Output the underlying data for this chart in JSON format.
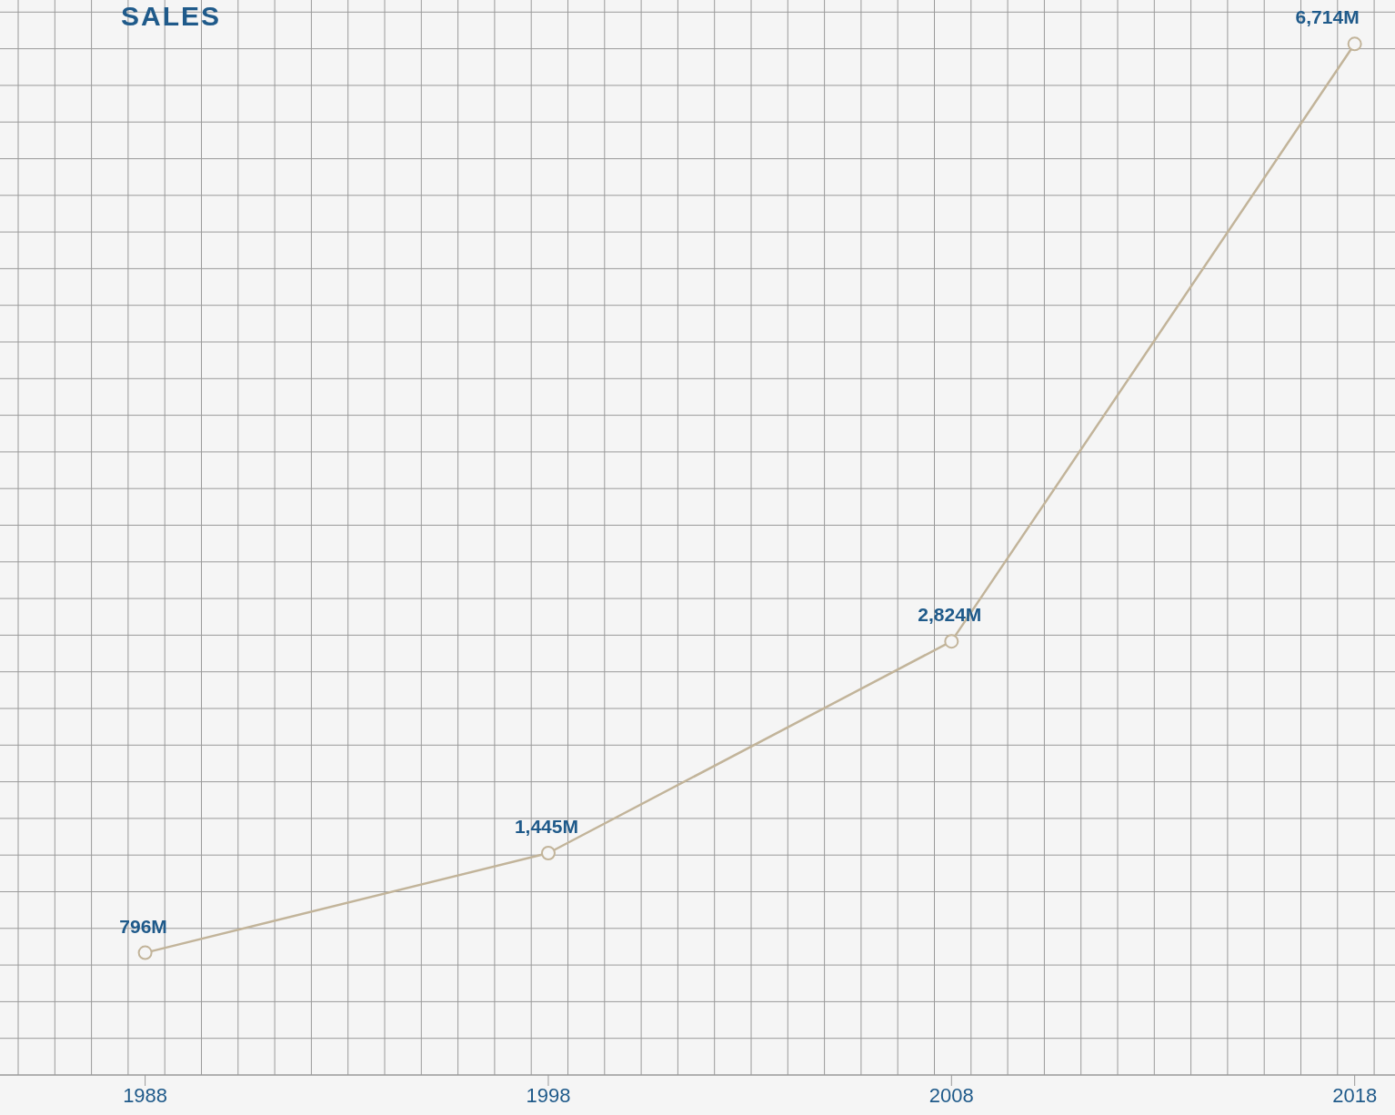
{
  "chart_data": {
    "type": "line",
    "title": "SALES",
    "x": [
      1988,
      1998,
      2008,
      2018
    ],
    "series": [
      {
        "color": "#c2b49a",
        "values": [
          796,
          1445,
          2824,
          6714
        ],
        "value_labels": [
          "796M",
          "1,445M",
          "2,824M",
          "6,714M"
        ]
      }
    ],
    "xlim": [
      1984.4,
      2019
    ],
    "xticks": [
      1988,
      1998,
      2008,
      2018
    ],
    "ylim": [
      0,
      7000
    ],
    "tick_labels": "x",
    "grid": true,
    "marker": "circle",
    "line_style": "solid"
  }
}
